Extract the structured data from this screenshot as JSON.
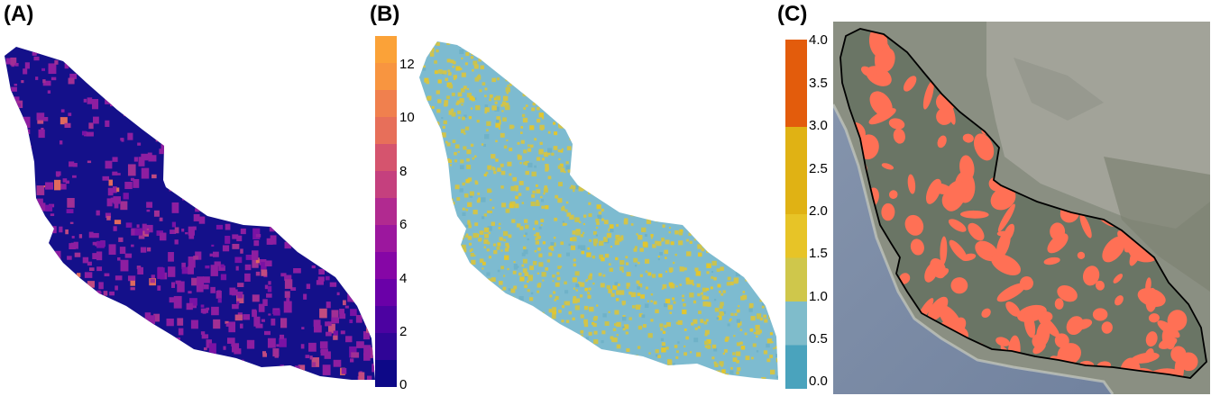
{
  "panels": [
    {
      "label": "(A)",
      "map": "habitat-count-raster"
    },
    {
      "label": "(B)",
      "map": "ratio-raster"
    },
    {
      "label": "(C)",
      "map": "satellite-overlay"
    }
  ],
  "legend_a": {
    "ticks": [
      "12",
      "10",
      "8",
      "6",
      "4",
      "2",
      "0"
    ],
    "range": [
      0,
      13
    ],
    "colors": [
      "#fba238",
      "#f89540",
      "#f0804e",
      "#e76f5a",
      "#d5546e",
      "#c5407e",
      "#b12a90",
      "#9c179e",
      "#8606a6",
      "#6a00a8",
      "#4c02a1",
      "#2f0596",
      "#0d0887"
    ]
  },
  "legend_b": {
    "ticks": [
      "4.0",
      "3.5",
      "3.0",
      "2.5",
      "2.0",
      "1.5",
      "1.0",
      "0.5",
      "0.0"
    ],
    "range": [
      0.0,
      4.0
    ],
    "bands": [
      {
        "from": 3.0,
        "to": 4.0,
        "color": "#e35c0c"
      },
      {
        "from": 2.0,
        "to": 3.0,
        "color": "#e0b214"
      },
      {
        "from": 1.5,
        "to": 2.0,
        "color": "#e7c427"
      },
      {
        "from": 1.0,
        "to": 1.5,
        "color": "#cfc74b"
      },
      {
        "from": 0.5,
        "to": 1.0,
        "color": "#7fbccb"
      },
      {
        "from": 0.0,
        "to": 0.5,
        "color": "#4aa3bd"
      }
    ]
  },
  "colors": {
    "map_a_background": "#14108a",
    "map_a_highlight": "#8e1ea0",
    "map_b_background": "#7dbbd0",
    "map_b_highlight": "#d2c44a",
    "map_c_overlay": "#ff7055",
    "ocean": "#7d8fa8",
    "land": "#8a8f82"
  }
}
